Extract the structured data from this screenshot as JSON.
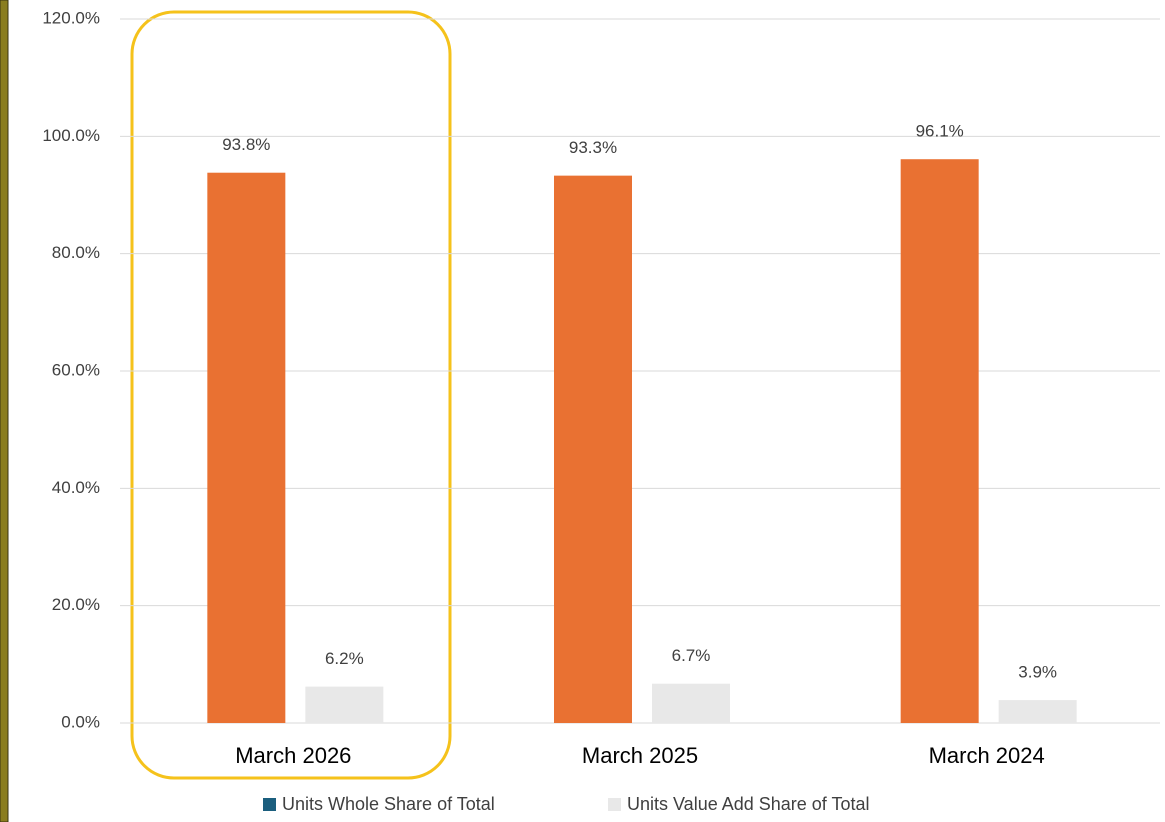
{
  "chart_data": {
    "type": "bar",
    "categories": [
      "March 2026",
      "March 2025",
      "March 2024"
    ],
    "series": [
      {
        "name": "Units Whole Share of Total",
        "color": "#e97132",
        "legend_color": "#1b5e7e",
        "values": [
          93.8,
          93.3,
          96.1
        ],
        "value_labels": [
          "93.8%",
          "93.3%",
          "96.1%"
        ]
      },
      {
        "name": "Units Value Add Share of Total",
        "color": "#e8e8e8",
        "values": [
          6.2,
          6.7,
          3.9
        ],
        "value_labels": [
          "6.2%",
          "6.7%",
          "3.9%"
        ]
      }
    ],
    "ylim": [
      0,
      120
    ],
    "yticks": [
      {
        "value": 0,
        "label": "0.0%"
      },
      {
        "value": 20,
        "label": "20.0%"
      },
      {
        "value": 40,
        "label": "40.0%"
      },
      {
        "value": 60,
        "label": "60.0%"
      },
      {
        "value": 80,
        "label": "80.0%"
      },
      {
        "value": 100,
        "label": "100.0%"
      },
      {
        "value": 120,
        "label": "120.0%"
      }
    ],
    "grid": true,
    "legend": "bottom"
  }
}
